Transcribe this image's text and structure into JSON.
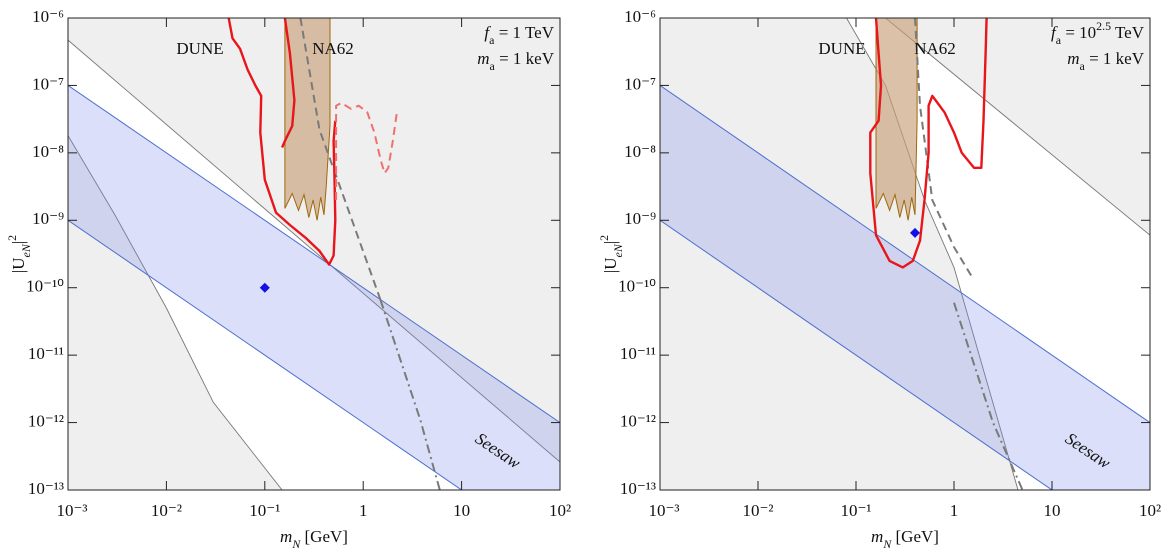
{
  "chart_data": [
    {
      "type": "line",
      "log_x": true,
      "log_y": true,
      "xlim": [
        0.001,
        100
      ],
      "ylim": [
        1e-13,
        1e-06
      ],
      "xticks": [
        {
          "value": 0.001,
          "label": "10⁻³"
        },
        {
          "value": 0.01,
          "label": "10⁻²"
        },
        {
          "value": 0.1,
          "label": "10⁻¹"
        },
        1,
        10,
        {
          "value": 100,
          "label": "10²"
        }
      ],
      "yticks": [
        {
          "value": 1e-13,
          "label": "10⁻¹³"
        },
        {
          "value": 1e-12,
          "label": "10⁻¹²"
        },
        {
          "value": 1e-11,
          "label": "10⁻¹¹"
        },
        {
          "value": 1e-10,
          "label": "10⁻¹⁰"
        },
        {
          "value": 1e-09,
          "label": "10⁻⁹"
        },
        {
          "value": 1e-08,
          "label": "10⁻⁸"
        },
        {
          "value": 1e-07,
          "label": "10⁻⁷"
        },
        {
          "value": 1e-06,
          "label": "10⁻⁶"
        }
      ],
      "xlabel": [
        "m",
        "N",
        " [GeV]"
      ],
      "ylabel": [
        "|U",
        "eN",
        "|",
        "2"
      ],
      "annotations": {
        "dune": "DUNE",
        "na62": "NA62",
        "seesaw": "Seesaw",
        "fa": [
          "f",
          "a",
          " = 1 TeV"
        ],
        "ma": [
          "m",
          "a",
          " = 1 keV"
        ]
      },
      "annotation_colors": {
        "dune": "#e8161b",
        "na62": "#7a4e12",
        "seesaw": "#1a1adb",
        "fa": "#111111",
        "ma": "#111111"
      },
      "series": [
        {
          "kind": "area-above",
          "color": "#777777",
          "fill": "#efefef",
          "x": [
            0.001,
            100
          ],
          "values": [
            4.7e-07,
            2.6e-13
          ]
        },
        {
          "kind": "area-left",
          "color": "#777777",
          "fill": "#efefef",
          "x": [
            0.001,
            0.003,
            0.01,
            0.03,
            0.15
          ],
          "values": [
            1.8e-08,
            1.2e-09,
            5e-11,
            2e-12,
            1e-13
          ]
        },
        {
          "kind": "band",
          "color": "#4a6fd0",
          "fill": "rgba(130,140,235,0.28)",
          "x": [
            0.001,
            100
          ],
          "values": [
            1e-07,
            1e-12
          ],
          "values2": [
            1e-09,
            1e-14
          ]
        },
        {
          "kind": "polygon",
          "color": "#a0680a",
          "fill": "rgba(200,160,120,0.65)",
          "x": [
            0.16,
            0.46,
            0.46,
            0.42,
            0.4,
            0.37,
            0.34,
            0.31,
            0.28,
            0.25,
            0.22,
            0.19,
            0.16
          ],
          "values": [
            1e-06,
            1e-06,
            2.5e-08,
            3e-09,
            1.2e-09,
            2.2e-09,
            1e-09,
            2e-09,
            1.1e-09,
            2.4e-09,
            1.4e-09,
            2.5e-09,
            1.5e-09
          ]
        },
        {
          "kind": "line",
          "dash": "dashed",
          "color": "#7a7a7a",
          "x": [
            0.23,
            0.36,
            0.65,
            1.5
          ],
          "values": [
            1e-06,
            2.2e-08,
            2e-09,
            6.6e-11
          ]
        },
        {
          "kind": "line",
          "dash": "dashdot",
          "color": "#7a7a7a",
          "x": [
            1.5,
            3.8,
            6
          ],
          "values": [
            6.6e-11,
            1.1e-12,
            1e-13
          ]
        },
        {
          "kind": "line",
          "color": "#e8161b",
          "x": [
            0.043,
            0.047,
            0.056,
            0.067,
            0.08,
            0.092,
            0.09,
            0.1,
            0.13,
            0.18,
            0.26,
            0.36,
            0.45,
            0.5,
            0.52,
            0.51,
            0.5,
            0.52,
            null,
            0.16,
            0.18,
            0.2,
            0.19,
            0.16,
            0.15
          ],
          "values": [
            1e-06,
            5e-07,
            3.5e-07,
            1.7e-07,
            1e-07,
            7e-08,
            2e-08,
            4e-09,
            1.3e-09,
            8.5e-10,
            5.5e-10,
            3.5e-10,
            2.2e-10,
            3e-10,
            1e-09,
            5e-09,
            1.5e-08,
            3e-08,
            null,
            1e-06,
            3e-07,
            6e-08,
            2.5e-08,
            1.5e-08,
            1.2e-08
          ]
        },
        {
          "kind": "line",
          "dash": "dashed",
          "color": "#f07070",
          "x": [
            0.53,
            0.53,
            0.6,
            0.75,
            0.9,
            1.1,
            1.3,
            1.5,
            1.65,
            1.8,
            2.0,
            2.2
          ],
          "values": [
            2e-09,
            5e-08,
            5.5e-08,
            4.5e-08,
            5e-08,
            4e-08,
            2e-08,
            8e-09,
            5e-09,
            6e-09,
            1.5e-08,
            4e-08
          ]
        },
        {
          "kind": "point",
          "color": "#1010e8",
          "x": [
            0.1
          ],
          "values": [
            1e-10
          ]
        }
      ]
    },
    {
      "type": "line",
      "log_x": true,
      "log_y": true,
      "xlim": [
        0.001,
        100
      ],
      "ylim": [
        1e-13,
        1e-06
      ],
      "xticks": [
        {
          "value": 0.001,
          "label": "10⁻³"
        },
        {
          "value": 0.01,
          "label": "10⁻²"
        },
        {
          "value": 0.1,
          "label": "10⁻¹"
        },
        1,
        10,
        {
          "value": 100,
          "label": "10²"
        }
      ],
      "yticks": [
        {
          "value": 1e-13,
          "label": "10⁻¹³"
        },
        {
          "value": 1e-12,
          "label": "10⁻¹²"
        },
        {
          "value": 1e-11,
          "label": "10⁻¹¹"
        },
        {
          "value": 1e-10,
          "label": "10⁻¹⁰"
        },
        {
          "value": 1e-09,
          "label": "10⁻⁹"
        },
        {
          "value": 1e-08,
          "label": "10⁻⁸"
        },
        {
          "value": 1e-07,
          "label": "10⁻⁷"
        },
        {
          "value": 1e-06,
          "label": "10⁻⁶"
        }
      ],
      "xlabel": [
        "m",
        "N",
        " [GeV]"
      ],
      "ylabel": [
        "|U",
        "eN",
        "|",
        "2"
      ],
      "annotations": {
        "dune": "DUNE",
        "na62": "NA62",
        "seesaw": "Seesaw",
        "fa": [
          "f",
          "a",
          " = 10",
          "2.5",
          " TeV"
        ],
        "ma": [
          "m",
          "a",
          " = 1 keV"
        ]
      },
      "annotation_colors": {
        "dune": "#e8161b",
        "na62": "#7a4e12",
        "seesaw": "#1a1adb",
        "fa": "#111111",
        "ma": "#111111"
      },
      "series": [
        {
          "kind": "area-above",
          "color": "#777777",
          "fill": "#efefef",
          "x": [
            0.2,
            100
          ],
          "values": [
            1e-06,
            6e-10
          ]
        },
        {
          "kind": "area-left",
          "color": "#777777",
          "fill": "#efefef",
          "x": [
            0.08,
            0.2,
            0.5,
            1,
            2,
            4.5
          ],
          "values": [
            1e-06,
            1e-07,
            2e-09,
            2e-10,
            6e-12,
            1e-13
          ]
        },
        {
          "kind": "band",
          "color": "#4a6fd0",
          "fill": "rgba(130,140,235,0.28)",
          "x": [
            0.001,
            100
          ],
          "values": [
            1e-07,
            1e-12
          ],
          "values2": [
            1e-09,
            1e-14
          ]
        },
        {
          "kind": "polygon",
          "color": "#a0680a",
          "fill": "rgba(200,160,120,0.65)",
          "x": [
            0.16,
            0.42,
            0.42,
            0.4,
            0.37,
            0.34,
            0.31,
            0.28,
            0.25,
            0.22,
            0.19,
            0.16
          ],
          "values": [
            1e-06,
            1e-06,
            3e-08,
            1.2e-09,
            2.2e-09,
            1e-09,
            2e-09,
            1.1e-09,
            2.4e-09,
            1.4e-09,
            2.5e-09,
            1.5e-09
          ]
        },
        {
          "kind": "line",
          "dash": "dashed",
          "color": "#7a7a7a",
          "x": [
            0.4,
            0.45,
            0.6,
            1.0,
            1.5
          ],
          "values": [
            1e-06,
            5e-08,
            2e-09,
            4e-10,
            1.5e-10
          ]
        },
        {
          "kind": "line",
          "dash": "dashdot",
          "color": "#7a7a7a",
          "x": [
            1.0,
            2.5,
            5
          ],
          "values": [
            6e-11,
            1e-12,
            1e-13
          ]
        },
        {
          "kind": "line",
          "color": "#e8161b",
          "x": [
            0.16,
            0.17,
            0.18,
            0.17,
            0.14,
            0.14,
            0.16,
            0.22,
            0.3,
            0.38,
            0.45,
            0.5,
            0.55,
            0.55,
            0.6,
            0.8,
            1.0,
            1.2,
            1.6,
            1.9,
            2.0,
            2.1,
            2.15
          ],
          "values": [
            1e-06,
            3e-07,
            1e-07,
            3e-08,
            2e-08,
            5e-09,
            6e-10,
            2.5e-10,
            2e-10,
            2.5e-10,
            5e-10,
            2e-09,
            1e-08,
            5e-08,
            7e-08,
            4e-08,
            2e-08,
            1e-08,
            6e-09,
            6e-09,
            3e-08,
            3e-07,
            1e-06
          ]
        },
        {
          "kind": "point",
          "color": "#1010e8",
          "x": [
            0.4
          ],
          "values": [
            6.5e-10
          ]
        }
      ]
    }
  ]
}
